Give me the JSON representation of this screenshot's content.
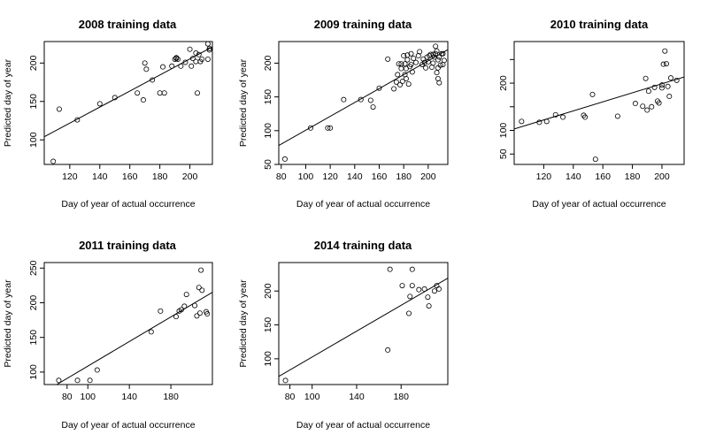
{
  "chart_data": [
    {
      "type": "scatter",
      "title": "2008  training data",
      "xlabel": "Day of year of actual occurrence",
      "ylabel": "Predicted day of year",
      "xlim": [
        103,
        215
      ],
      "ylim": [
        68,
        228
      ],
      "xticks": [
        120,
        140,
        160,
        180,
        200
      ],
      "yticks": [
        100,
        150,
        200
      ],
      "points": [
        [
          109,
          72
        ],
        [
          113,
          140
        ],
        [
          125,
          126
        ],
        [
          140,
          147
        ],
        [
          150,
          155
        ],
        [
          165,
          161
        ],
        [
          169,
          152
        ],
        [
          170,
          200
        ],
        [
          171,
          192
        ],
        [
          175,
          178
        ],
        [
          180,
          161
        ],
        [
          182,
          195
        ],
        [
          183,
          161
        ],
        [
          188,
          196
        ],
        [
          190,
          205
        ],
        [
          191,
          206
        ],
        [
          191,
          207
        ],
        [
          192,
          205
        ],
        [
          194,
          196
        ],
        [
          197,
          201
        ],
        [
          200,
          218
        ],
        [
          201,
          196
        ],
        [
          202,
          206
        ],
        [
          204,
          202
        ],
        [
          204,
          213
        ],
        [
          205,
          161
        ],
        [
          206,
          211
        ],
        [
          207,
          202
        ],
        [
          208,
          205
        ],
        [
          212,
          225
        ],
        [
          212,
          205
        ],
        [
          213,
          217
        ],
        [
          213,
          219
        ]
      ],
      "fit": [
        [
          103,
          104
        ],
        [
          215,
          221
        ]
      ]
    },
    {
      "type": "scatter",
      "title": "2009  training data",
      "xlabel": "Day of year of actual occurrence",
      "ylabel": "Predicted day of year",
      "xlim": [
        78,
        216
      ],
      "ylim": [
        50,
        232
      ],
      "xticks": [
        80,
        100,
        120,
        140,
        160,
        180,
        200
      ],
      "yticks": [
        50,
        100,
        150,
        200
      ],
      "points": [
        [
          83,
          58
        ],
        [
          104,
          104
        ],
        [
          118,
          104
        ],
        [
          120,
          104
        ],
        [
          131,
          146
        ],
        [
          145,
          146
        ],
        [
          153,
          145
        ],
        [
          155,
          135
        ],
        [
          160,
          163
        ],
        [
          167,
          206
        ],
        [
          172,
          162
        ],
        [
          174,
          172
        ],
        [
          175,
          183
        ],
        [
          176,
          199
        ],
        [
          177,
          168
        ],
        [
          178,
          192
        ],
        [
          178,
          199
        ],
        [
          179,
          173
        ],
        [
          180,
          211
        ],
        [
          181,
          183
        ],
        [
          181,
          199
        ],
        [
          182,
          177
        ],
        [
          182,
          192
        ],
        [
          183,
          205
        ],
        [
          183,
          212
        ],
        [
          184,
          169
        ],
        [
          185,
          195
        ],
        [
          186,
          198
        ],
        [
          186,
          214
        ],
        [
          187,
          187
        ],
        [
          188,
          207
        ],
        [
          190,
          201
        ],
        [
          192,
          211
        ],
        [
          193,
          217
        ],
        [
          195,
          198
        ],
        [
          196,
          206
        ],
        [
          197,
          201
        ],
        [
          198,
          193
        ],
        [
          199,
          209
        ],
        [
          200,
          202
        ],
        [
          201,
          211
        ],
        [
          202,
          213
        ],
        [
          203,
          194
        ],
        [
          204,
          200
        ],
        [
          204,
          213
        ],
        [
          205,
          209
        ],
        [
          206,
          214
        ],
        [
          206,
          225
        ],
        [
          207,
          186
        ],
        [
          207,
          218
        ],
        [
          208,
          177
        ],
        [
          208,
          193
        ],
        [
          208,
          205
        ],
        [
          209,
          171
        ],
        [
          209,
          209
        ],
        [
          210,
          197
        ],
        [
          211,
          214
        ],
        [
          212,
          198
        ],
        [
          212,
          214
        ],
        [
          213,
          204
        ]
      ],
      "fit": [
        [
          78,
          78
        ],
        [
          216,
          220
        ]
      ]
    },
    {
      "type": "scatter",
      "title": "2010  training data",
      "xlabel": "Day of year of actual occurrence",
      "ylabel": "",
      "xlim": [
        100,
        215
      ],
      "ylim": [
        28,
        288
      ],
      "xticks": [
        120,
        140,
        160,
        180,
        200
      ],
      "yticks": [
        50,
        100,
        150,
        200,
        250
      ],
      "ytick_labels": [
        "50",
        "100",
        "",
        "200",
        ""
      ],
      "points": [
        [
          105,
          119
        ],
        [
          117,
          117
        ],
        [
          122,
          119
        ],
        [
          128,
          133
        ],
        [
          133,
          128
        ],
        [
          147,
          132
        ],
        [
          148,
          128
        ],
        [
          153,
          176
        ],
        [
          155,
          39
        ],
        [
          170,
          130
        ],
        [
          182,
          157
        ],
        [
          187,
          151
        ],
        [
          189,
          210
        ],
        [
          190,
          143
        ],
        [
          191,
          183
        ],
        [
          193,
          150
        ],
        [
          195,
          191
        ],
        [
          197,
          162
        ],
        [
          198,
          158
        ],
        [
          200,
          190
        ],
        [
          200,
          196
        ],
        [
          201,
          240
        ],
        [
          202,
          268
        ],
        [
          203,
          241
        ],
        [
          204,
          193
        ],
        [
          205,
          172
        ],
        [
          206,
          211
        ],
        [
          210,
          206
        ]
      ],
      "fit": [
        [
          100,
          103
        ],
        [
          215,
          213
        ]
      ]
    },
    {
      "type": "scatter",
      "title": "2011  training data",
      "xlabel": "Day of year of actual occurrence",
      "ylabel": "Predicted day of year",
      "xlim": [
        58,
        220
      ],
      "ylim": [
        82,
        258
      ],
      "xticks": [
        80,
        100,
        140,
        180
      ],
      "yticks": [
        100,
        150,
        200,
        250
      ],
      "points": [
        [
          72,
          88
        ],
        [
          90,
          88
        ],
        [
          102,
          88
        ],
        [
          109,
          103
        ],
        [
          161,
          158
        ],
        [
          170,
          188
        ],
        [
          185,
          180
        ],
        [
          188,
          188
        ],
        [
          190,
          190
        ],
        [
          193,
          195
        ],
        [
          195,
          212
        ],
        [
          203,
          196
        ],
        [
          205,
          181
        ],
        [
          207,
          222
        ],
        [
          208,
          185
        ],
        [
          209,
          247
        ],
        [
          210,
          218
        ],
        [
          214,
          187
        ],
        [
          215,
          184
        ]
      ],
      "fit": [
        [
          70,
          82
        ],
        [
          220,
          215
        ]
      ]
    },
    {
      "type": "scatter",
      "title": "2014  training data",
      "xlabel": "Day of year of actual occurrence",
      "ylabel": "Predicted day of year",
      "xlim": [
        70,
        222
      ],
      "ylim": [
        62,
        242
      ],
      "xticks": [
        80,
        100,
        140,
        180
      ],
      "yticks": [
        100,
        150,
        200
      ],
      "points": [
        [
          76,
          68
        ],
        [
          168,
          113
        ],
        [
          170,
          232
        ],
        [
          181,
          208
        ],
        [
          187,
          167
        ],
        [
          188,
          192
        ],
        [
          190,
          208
        ],
        [
          190,
          232
        ],
        [
          196,
          202
        ],
        [
          201,
          203
        ],
        [
          204,
          191
        ],
        [
          205,
          178
        ],
        [
          210,
          200
        ],
        [
          212,
          208
        ],
        [
          214,
          203
        ]
      ],
      "fit": [
        [
          70,
          74
        ],
        [
          222,
          219
        ]
      ]
    }
  ]
}
